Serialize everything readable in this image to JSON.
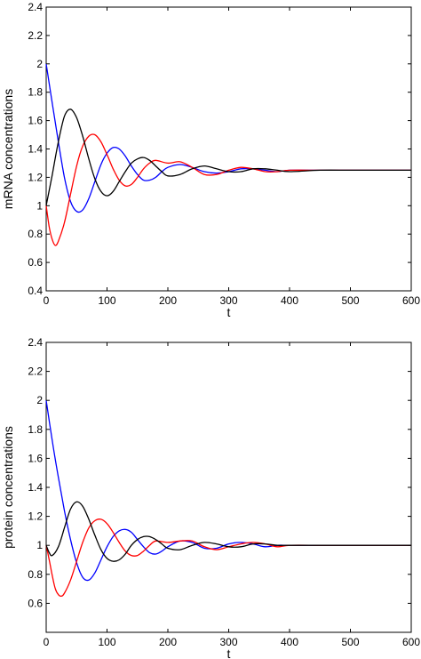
{
  "chart_data": [
    {
      "type": "line",
      "title": "",
      "xlabel": "t",
      "ylabel": "mRNA concentrations",
      "xlim": [
        0,
        600
      ],
      "ylim": [
        0.4,
        2.4
      ],
      "xticks": [
        "0",
        "100",
        "200",
        "300",
        "400",
        "500",
        "600"
      ],
      "yticks": [
        "0.4",
        "0.6",
        "0.8",
        "1",
        "1.2",
        "1.4",
        "1.6",
        "1.8",
        "2",
        "2.2",
        "2.4"
      ],
      "grid": false,
      "series": [
        {
          "color": "#0000ff",
          "x": [
            0,
            10,
            20,
            30,
            40,
            50,
            60,
            70,
            80,
            90,
            100,
            110,
            120,
            130,
            140,
            150,
            160,
            170,
            180,
            190,
            200,
            220,
            240,
            260,
            280,
            300,
            320,
            340,
            360,
            380,
            400,
            450,
            500,
            550,
            600
          ],
          "y": [
            2.0,
            1.72,
            1.45,
            1.2,
            1.03,
            0.96,
            0.97,
            1.05,
            1.17,
            1.29,
            1.37,
            1.41,
            1.4,
            1.35,
            1.28,
            1.22,
            1.18,
            1.18,
            1.2,
            1.24,
            1.27,
            1.29,
            1.27,
            1.24,
            1.23,
            1.24,
            1.26,
            1.26,
            1.25,
            1.24,
            1.25,
            1.25,
            1.25,
            1.25,
            1.25
          ]
        },
        {
          "color": "#ff0000",
          "x": [
            0,
            5,
            10,
            15,
            20,
            30,
            40,
            50,
            60,
            70,
            80,
            90,
            100,
            110,
            120,
            130,
            140,
            150,
            160,
            170,
            180,
            200,
            220,
            240,
            260,
            280,
            300,
            320,
            340,
            360,
            380,
            400,
            450,
            500,
            550,
            600
          ],
          "y": [
            1.0,
            0.85,
            0.76,
            0.72,
            0.75,
            0.88,
            1.08,
            1.28,
            1.42,
            1.49,
            1.5,
            1.45,
            1.36,
            1.26,
            1.18,
            1.14,
            1.15,
            1.2,
            1.26,
            1.3,
            1.32,
            1.3,
            1.31,
            1.27,
            1.22,
            1.22,
            1.25,
            1.27,
            1.26,
            1.24,
            1.24,
            1.25,
            1.25,
            1.25,
            1.25,
            1.25
          ]
        },
        {
          "color": "#000000",
          "x": [
            0,
            10,
            20,
            30,
            40,
            50,
            60,
            70,
            80,
            90,
            100,
            110,
            120,
            130,
            140,
            150,
            160,
            170,
            180,
            190,
            200,
            220,
            240,
            260,
            280,
            300,
            320,
            340,
            360,
            380,
            400,
            450,
            500,
            550,
            600
          ],
          "y": [
            1.0,
            1.22,
            1.45,
            1.63,
            1.68,
            1.62,
            1.49,
            1.33,
            1.19,
            1.1,
            1.07,
            1.1,
            1.17,
            1.24,
            1.3,
            1.33,
            1.34,
            1.32,
            1.28,
            1.24,
            1.21,
            1.22,
            1.26,
            1.28,
            1.26,
            1.24,
            1.24,
            1.26,
            1.26,
            1.25,
            1.24,
            1.25,
            1.25,
            1.25,
            1.25
          ]
        }
      ]
    },
    {
      "type": "line",
      "title": "",
      "xlabel": "t",
      "ylabel": "protein concentrations",
      "xlim": [
        0,
        600
      ],
      "ylim": [
        0.4,
        2.4
      ],
      "xticks": [
        "0",
        "100",
        "200",
        "300",
        "400",
        "500",
        "600"
      ],
      "yticks": [
        "0.6",
        "0.8",
        "1",
        "1.2",
        "1.4",
        "1.6",
        "1.8",
        "2",
        "2.2",
        "2.4"
      ],
      "grid": false,
      "series": [
        {
          "color": "#0000ff",
          "x": [
            0,
            10,
            20,
            30,
            40,
            50,
            60,
            70,
            80,
            90,
            100,
            110,
            120,
            130,
            140,
            150,
            160,
            170,
            180,
            190,
            200,
            220,
            240,
            260,
            280,
            300,
            320,
            340,
            360,
            380,
            400,
            450,
            500,
            550,
            600
          ],
          "y": [
            2.0,
            1.72,
            1.47,
            1.24,
            1.04,
            0.88,
            0.78,
            0.76,
            0.81,
            0.9,
            0.99,
            1.06,
            1.1,
            1.11,
            1.09,
            1.04,
            0.99,
            0.95,
            0.94,
            0.96,
            0.99,
            1.03,
            1.02,
            0.98,
            0.98,
            1.01,
            1.02,
            1.01,
            0.99,
            1.0,
            1.0,
            1.0,
            1.0,
            1.0,
            1.0
          ]
        },
        {
          "color": "#ff0000",
          "x": [
            0,
            5,
            10,
            15,
            20,
            25,
            30,
            40,
            50,
            60,
            70,
            80,
            90,
            100,
            110,
            120,
            130,
            140,
            150,
            160,
            170,
            180,
            200,
            220,
            240,
            260,
            280,
            300,
            320,
            340,
            360,
            380,
            400,
            450,
            500,
            550,
            600
          ],
          "y": [
            1.0,
            0.9,
            0.79,
            0.7,
            0.66,
            0.65,
            0.67,
            0.76,
            0.89,
            1.02,
            1.12,
            1.17,
            1.18,
            1.15,
            1.09,
            1.02,
            0.96,
            0.93,
            0.93,
            0.96,
            1.0,
            1.03,
            1.02,
            1.03,
            1.03,
            0.99,
            0.97,
            0.99,
            1.01,
            1.02,
            1.01,
            0.99,
            1.0,
            1.0,
            1.0,
            1.0,
            1.0
          ]
        },
        {
          "color": "#000000",
          "x": [
            0,
            5,
            10,
            20,
            30,
            40,
            50,
            60,
            70,
            80,
            90,
            100,
            110,
            120,
            130,
            140,
            150,
            160,
            170,
            180,
            190,
            200,
            220,
            240,
            260,
            280,
            300,
            320,
            340,
            360,
            380,
            400,
            450,
            500,
            550,
            600
          ],
          "y": [
            1.0,
            0.95,
            0.93,
            0.99,
            1.12,
            1.25,
            1.3,
            1.27,
            1.18,
            1.07,
            0.97,
            0.91,
            0.89,
            0.9,
            0.94,
            1.0,
            1.04,
            1.06,
            1.06,
            1.04,
            1.01,
            0.98,
            0.97,
            1.0,
            1.02,
            1.01,
            0.99,
            0.99,
            1.01,
            1.01,
            1.0,
            1.0,
            1.0,
            1.0,
            1.0,
            1.0
          ]
        }
      ]
    }
  ]
}
